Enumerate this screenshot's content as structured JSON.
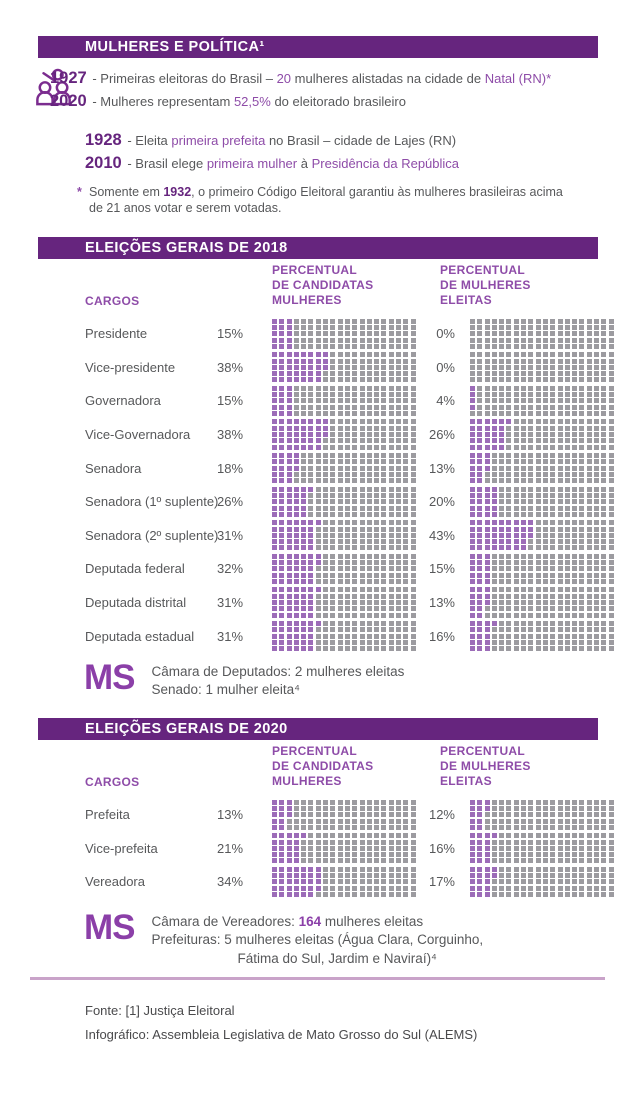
{
  "colors": {
    "dark_purple": "#66257E",
    "accent_purple": "#8E4CA8",
    "ms_purple": "#8B3FA8",
    "waffle_filled": "#9C6CB8",
    "waffle_empty": "#9C9BA0",
    "text_gray": "#57585A",
    "divider": "#C9A3C9",
    "page_bg": "#FFFFFF"
  },
  "header": {
    "title": "MULHERES E POLÍTICA¹"
  },
  "intro": {
    "facts_group1": [
      {
        "year": "1927",
        "segments": [
          {
            "t": " - Primeiras eleitoras do Brasil – ",
            "c": "g"
          },
          {
            "t": "20 ",
            "c": "p"
          },
          {
            "t": "mulheres alistadas na cidade de ",
            "c": "g"
          },
          {
            "t": "Natal (RN)*",
            "c": "p"
          }
        ]
      },
      {
        "year": "2020",
        "segments": [
          {
            "t": " - Mulheres representam ",
            "c": "g"
          },
          {
            "t": "52,5%",
            "c": "p"
          },
          {
            "t": " do eleitorado brasileiro",
            "c": "g"
          }
        ]
      }
    ],
    "facts_group2": [
      {
        "year": "1928",
        "segments": [
          {
            "t": " - Eleita ",
            "c": "g"
          },
          {
            "t": "primeira prefeita",
            "c": "p"
          },
          {
            "t": " no Brasil – cidade de Lajes (RN)",
            "c": "g"
          }
        ]
      },
      {
        "year": "2010",
        "segments": [
          {
            "t": " - Brasil elege ",
            "c": "g"
          },
          {
            "t": "primeira mulher",
            "c": "p"
          },
          {
            "t": " à ",
            "c": "g"
          },
          {
            "t": "Presidência da República",
            "c": "p"
          }
        ]
      }
    ],
    "footnote": {
      "marker": "*",
      "lines": [
        {
          "segments": [
            {
              "t": "Somente em ",
              "c": "g"
            },
            {
              "t": "1932",
              "c": "y"
            },
            {
              "t": ", o primeiro Código Eleitoral garantiu às mulheres brasileiras acima",
              "c": "g"
            }
          ]
        },
        {
          "segments": [
            {
              "t": "de 21 anos votar e serem votadas.",
              "c": "g"
            }
          ]
        }
      ]
    }
  },
  "sections": [
    {
      "title": "ELEIÇÕES GERAIS DE 2018",
      "columns": {
        "cargos": "CARGOS",
        "col1": "PERCENTUAL\nDE CANDIDATAS\nMULHERES",
        "col2": "PERCENTUAL\nDE MULHERES\nELEITAS"
      },
      "rows": [
        {
          "label": "Presidente",
          "candidatas_pct": "15%",
          "candidatas_value": 15,
          "eleitas_pct": "0%",
          "eleitas_value": 0
        },
        {
          "label": "Vice-presidente",
          "candidatas_pct": "38%",
          "candidatas_value": 38,
          "eleitas_pct": "0%",
          "eleitas_value": 0
        },
        {
          "label": "Governadora",
          "candidatas_pct": "15%",
          "candidatas_value": 15,
          "eleitas_pct": "4%",
          "eleitas_value": 4
        },
        {
          "label": "Vice-Governadora",
          "candidatas_pct": "38%",
          "candidatas_value": 38,
          "eleitas_pct": "26%",
          "eleitas_value": 26
        },
        {
          "label": "Senadora",
          "candidatas_pct": "18%",
          "candidatas_value": 18,
          "eleitas_pct": "13%",
          "eleitas_value": 13
        },
        {
          "label": "Senadora (1º suplente)",
          "candidatas_pct": "26%",
          "candidatas_value": 26,
          "eleitas_pct": "20%",
          "eleitas_value": 20
        },
        {
          "label": "Senadora (2º suplente)",
          "candidatas_pct": "31%",
          "candidatas_value": 31,
          "eleitas_pct": "43%",
          "eleitas_value": 43
        },
        {
          "label": "Deputada federal",
          "candidatas_pct": "32%",
          "candidatas_value": 32,
          "eleitas_pct": "15%",
          "eleitas_value": 15
        },
        {
          "label": "Deputada distrital",
          "candidatas_pct": "31%",
          "candidatas_value": 31,
          "eleitas_pct": "13%",
          "eleitas_value": 13
        },
        {
          "label": "Deputada estadual",
          "candidatas_pct": "31%",
          "candidatas_value": 31,
          "eleitas_pct": "16%",
          "eleitas_value": 16
        }
      ],
      "ms_note": {
        "logo": "MS",
        "lines": [
          {
            "segments": [
              {
                "t": "Câmara de Deputados: 2 mulheres eleitas",
                "c": "g"
              }
            ]
          },
          {
            "segments": [
              {
                "t": "Senado: 1 mulher eleita⁴",
                "c": "g"
              }
            ]
          }
        ]
      }
    },
    {
      "title": "ELEIÇÕES GERAIS DE 2020",
      "columns": {
        "cargos": "CARGOS",
        "col1": "PERCENTUAL\nDE CANDIDATAS\nMULHERES",
        "col2": "PERCENTUAL\nDE MULHERES\nELEITAS"
      },
      "rows": [
        {
          "label": "Prefeita",
          "candidatas_pct": "13%",
          "candidatas_value": 13,
          "eleitas_pct": "12%",
          "eleitas_value": 12
        },
        {
          "label": "Vice-prefeita",
          "candidatas_pct": "21%",
          "candidatas_value": 21,
          "eleitas_pct": "16%",
          "eleitas_value": 16
        },
        {
          "label": "Vereadora",
          "candidatas_pct": "34%",
          "candidatas_value": 34,
          "eleitas_pct": "17%",
          "eleitas_value": 17
        }
      ],
      "ms_note": {
        "logo": "MS",
        "lines": [
          {
            "segments": [
              {
                "t": "Câmara de Vereadores: ",
                "c": "g"
              },
              {
                "t": "164",
                "c": "b"
              },
              {
                "t": " mulheres eleitas",
                "c": "g"
              }
            ]
          },
          {
            "segments": [
              {
                "t": "Prefeituras: 5 mulheres eleitas  (Água Clara, Corguinho,",
                "c": "g"
              }
            ]
          },
          {
            "indent": true,
            "segments": [
              {
                "t": "Fátima do Sul, Jardim e Naviraí)⁴",
                "c": "g"
              }
            ]
          }
        ]
      }
    }
  ],
  "footer": {
    "line1": "Fonte: [1] Justiça Eleitoral",
    "line2": "Infográfico: Assembleia Legislativa de Mato Grosso do Sul (ALEMS)"
  },
  "chart_data": [
    {
      "type": "waffle",
      "title": "Eleições Gerais de 2018",
      "unit": "%",
      "waffle_grid": "20 columns x 5 rows = 100 cells, filled column-by-column top-to-bottom",
      "categories": [
        "Presidente",
        "Vice-presidente",
        "Governadora",
        "Vice-Governadora",
        "Senadora",
        "Senadora (1º suplente)",
        "Senadora (2º suplente)",
        "Deputada federal",
        "Deputada distrital",
        "Deputada estadual"
      ],
      "series": [
        {
          "name": "Percentual de candidatas mulheres",
          "values": [
            15,
            38,
            15,
            38,
            18,
            26,
            31,
            32,
            31,
            31
          ]
        },
        {
          "name": "Percentual de mulheres eleitas",
          "values": [
            0,
            0,
            4,
            26,
            13,
            20,
            43,
            15,
            13,
            16
          ]
        }
      ]
    },
    {
      "type": "waffle",
      "title": "Eleições Gerais de 2020",
      "unit": "%",
      "waffle_grid": "20 columns x 5 rows = 100 cells, filled column-by-column top-to-bottom",
      "categories": [
        "Prefeita",
        "Vice-prefeita",
        "Vereadora"
      ],
      "series": [
        {
          "name": "Percentual de candidatas mulheres",
          "values": [
            13,
            21,
            34
          ]
        },
        {
          "name": "Percentual de mulheres eleitas",
          "values": [
            12,
            16,
            17
          ]
        }
      ]
    }
  ]
}
